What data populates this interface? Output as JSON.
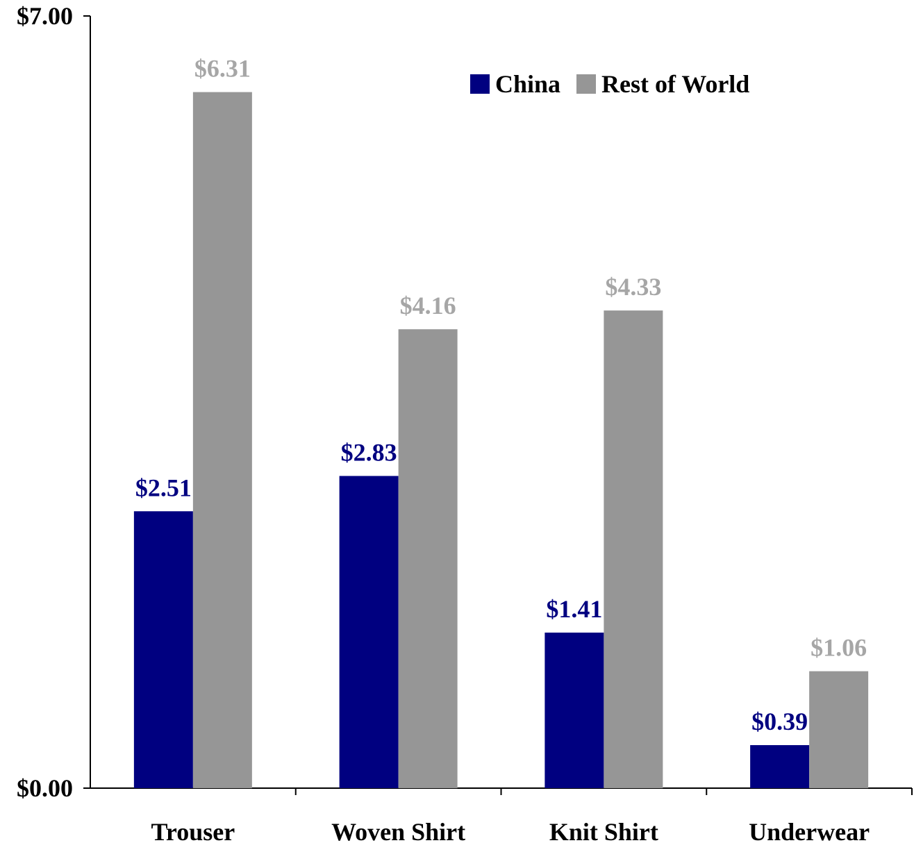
{
  "chart_data": {
    "type": "bar",
    "categories": [
      "Trouser",
      "Woven Shirt",
      "Knit Shirt",
      "Underwear"
    ],
    "series": [
      {
        "name": "China",
        "values": [
          2.51,
          2.83,
          1.41,
          0.39
        ],
        "labels": [
          "$2.51",
          "$2.83",
          "$1.41",
          "$0.39"
        ],
        "color": "#000080",
        "label_color": "#000080"
      },
      {
        "name": "Rest of World",
        "values": [
          6.31,
          4.16,
          4.33,
          1.06
        ],
        "labels": [
          "$6.31",
          "$4.16",
          "$4.33",
          "$1.06"
        ],
        "color": "#969696",
        "label_color": "#A6A6A6"
      }
    ],
    "ylim": [
      0,
      7
    ],
    "yticks": [
      {
        "value": 7,
        "label": "$7.00"
      },
      {
        "value": 0,
        "label": "$0.00"
      }
    ],
    "legend_position": "top-right",
    "grid": false
  }
}
